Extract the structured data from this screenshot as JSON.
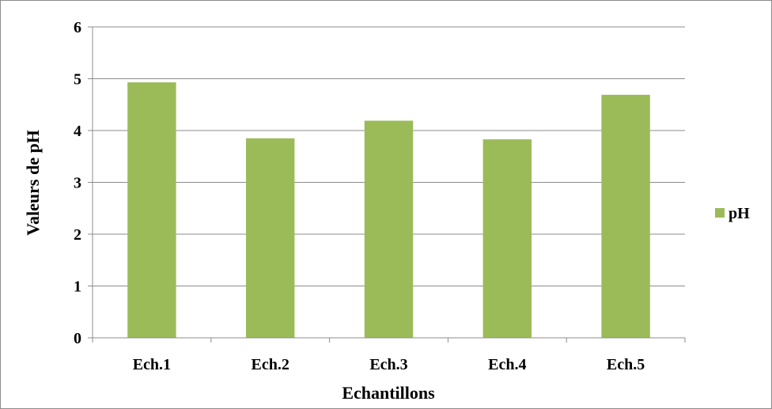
{
  "chart_data": {
    "type": "bar",
    "categories": [
      "Ech.1",
      "Ech.2",
      "Ech.3",
      "Ech.4",
      "Ech.5"
    ],
    "series": [
      {
        "name": "pH",
        "values": [
          4.93,
          3.85,
          4.19,
          3.83,
          4.69
        ],
        "color": "#9bbb59"
      }
    ],
    "xlabel": "Echantillons",
    "ylabel": "Valeurs de pH",
    "ylim": [
      0,
      6
    ],
    "yticks": [
      "0",
      "1",
      "2",
      "3",
      "4",
      "5",
      "6"
    ],
    "grid": true,
    "legend_position": "right"
  }
}
